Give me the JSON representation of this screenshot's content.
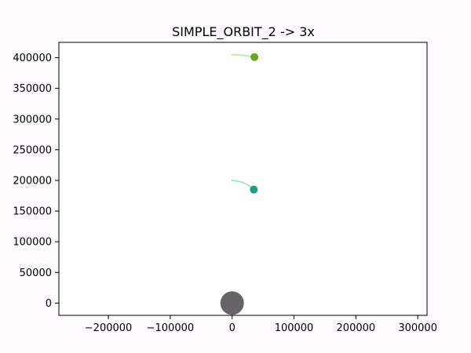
{
  "chart_data": {
    "type": "scatter",
    "title": "SIMPLE_ORBIT_2 -> 3x",
    "xlabel": "",
    "ylabel": "",
    "xlim": [
      -280000,
      315000
    ],
    "ylim": [
      -20000,
      425000
    ],
    "x_ticks": [
      -200000,
      -100000,
      0,
      100000,
      200000,
      300000
    ],
    "y_ticks": [
      0,
      50000,
      100000,
      150000,
      200000,
      250000,
      300000,
      350000,
      400000
    ],
    "grid": false,
    "legend": "none",
    "bodies": [
      {
        "role": "central",
        "x": 0,
        "y": 0,
        "color": "#666466",
        "trail": []
      },
      {
        "role": "inner-orbiter",
        "x": 35000,
        "y": 185000,
        "color": "#1f9e7d",
        "trail_color": "#b9dcd3",
        "trail": [
          [
            0,
            200000
          ],
          [
            8000,
            199000
          ],
          [
            16000,
            197000
          ],
          [
            24000,
            193500
          ],
          [
            30000,
            189500
          ],
          [
            35000,
            185000
          ]
        ]
      },
      {
        "role": "outer-orbiter",
        "x": 36000,
        "y": 401000,
        "color": "#66a61e",
        "trail_color": "#cfe3b9",
        "trail": [
          [
            0,
            405000
          ],
          [
            10000,
            404500
          ],
          [
            20000,
            403700
          ],
          [
            28000,
            402600
          ],
          [
            36000,
            401000
          ]
        ]
      }
    ]
  }
}
